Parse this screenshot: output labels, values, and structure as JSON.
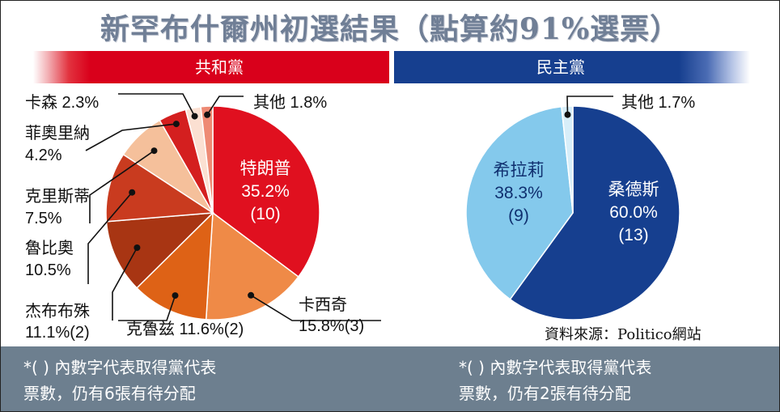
{
  "title": "新罕布什爾州初選結果（點算約91%選票）",
  "parties": {
    "republican": "共和黨",
    "democratic": "民主黨"
  },
  "source": "資料來源：Politico網站",
  "notes": {
    "republican": [
      "*( ) 內數字代表取得黨代表",
      "票數，仍有6張有待分配"
    ],
    "democratic": [
      "*( ) 內數字代表取得黨代表",
      "票數，仍有2張有待分配"
    ]
  },
  "colors": {
    "rep_band": "#d9001b",
    "dem_band": "#163f8f",
    "footer": "#6d7f8f"
  },
  "chart_data": [
    {
      "type": "pie",
      "title": "共和黨",
      "unit": "%",
      "slices": [
        {
          "name": "特朗普",
          "value": 35.2,
          "delegates": "(10)",
          "label": "35.2%",
          "color": "#e0101f"
        },
        {
          "name": "卡西奇",
          "value": 15.8,
          "delegates": "(3)",
          "label": "15.8%",
          "color": "#ef8a47"
        },
        {
          "name": "克魯兹",
          "value": 11.6,
          "delegates": "(2)",
          "label": "11.6%",
          "color": "#de6216"
        },
        {
          "name": "杰布布殊",
          "value": 11.1,
          "delegates": "(2)",
          "label": "11.1%",
          "color": "#a83513"
        },
        {
          "name": "魯比奧",
          "value": 10.5,
          "delegates": "",
          "label": "10.5%",
          "color": "#c93b1f"
        },
        {
          "name": "克里斯蒂",
          "value": 7.5,
          "delegates": "",
          "label": "7.5%",
          "color": "#f5c09b"
        },
        {
          "name": "菲奧里納",
          "value": 4.2,
          "delegates": "",
          "label": "4.2%",
          "color": "#d41f1f"
        },
        {
          "name": "卡森",
          "value": 2.3,
          "delegates": "",
          "label": "2.3%",
          "color": "#fbe0d2"
        },
        {
          "name": "其他",
          "value": 1.8,
          "delegates": "",
          "label": "1.8%",
          "color": "#ee8a74"
        }
      ]
    },
    {
      "type": "pie",
      "title": "民主黨",
      "unit": "%",
      "slices": [
        {
          "name": "桑德斯",
          "value": 60.0,
          "delegates": "(13)",
          "label": "60.0%",
          "color": "#163f8f"
        },
        {
          "name": "希拉莉",
          "value": 38.3,
          "delegates": "(9)",
          "label": "38.3%",
          "color": "#84c9ec"
        },
        {
          "name": "其他",
          "value": 1.7,
          "delegates": "",
          "label": "1.7%",
          "color": "#d7eef9"
        }
      ]
    }
  ]
}
